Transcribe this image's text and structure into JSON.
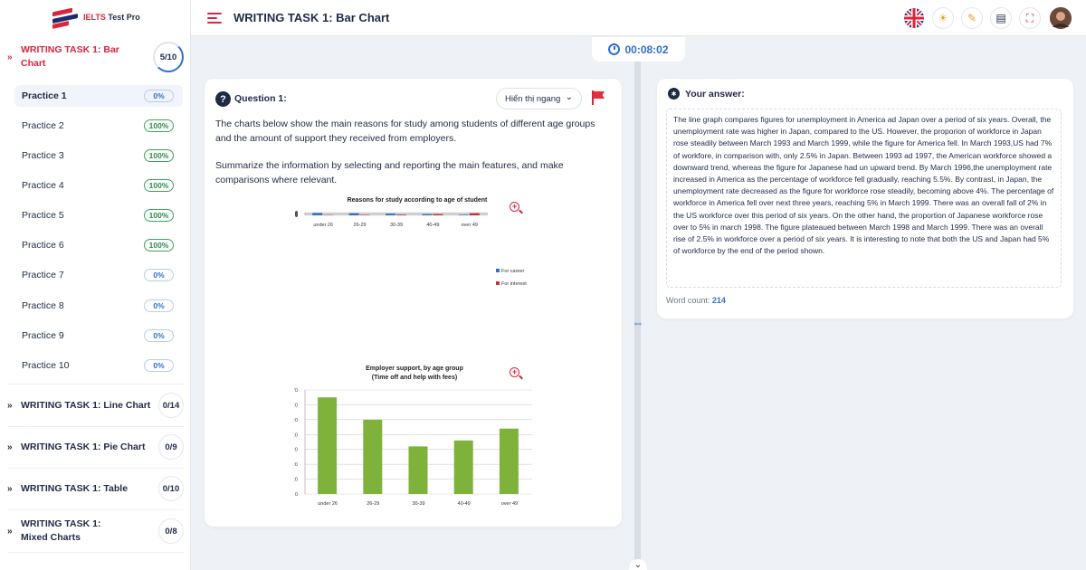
{
  "app": {
    "brand_prefix": "IELTS",
    "brand_suffix": "Test Pro"
  },
  "topbar": {
    "title": "WRITING TASK 1: Bar Chart"
  },
  "timer": {
    "value": "00:08:02"
  },
  "sidebar": {
    "groups": [
      {
        "title": "WRITING TASK 1: Bar Chart",
        "count": "5/10",
        "expanded": true
      },
      {
        "title": "WRITING TASK 1: Line Chart",
        "count": "0/14"
      },
      {
        "title": "WRITING TASK 1: Pie Chart",
        "count": "0/9"
      },
      {
        "title": "WRITING TASK 1: Table",
        "count": "0/10"
      },
      {
        "title": "WRITING TASK 1: Mixed Charts",
        "count": "0/8"
      }
    ],
    "practices": [
      {
        "label": "Practice 1",
        "progress": "0%"
      },
      {
        "label": "Practice 2",
        "progress": "100%"
      },
      {
        "label": "Practice 3",
        "progress": "100%"
      },
      {
        "label": "Practice 4",
        "progress": "100%"
      },
      {
        "label": "Practice 5",
        "progress": "100%"
      },
      {
        "label": "Practice 6",
        "progress": "100%"
      },
      {
        "label": "Practice 7",
        "progress": "0%"
      },
      {
        "label": "Practice 8",
        "progress": "0%"
      },
      {
        "label": "Practice 9",
        "progress": "0%"
      },
      {
        "label": "Practice 10",
        "progress": "0%"
      }
    ]
  },
  "question": {
    "label": "Question 1:",
    "display_option": "Hiển thị ngang",
    "text1": "The charts below show the main reasons for study among students of different age groups and the amount of support they received from employers.",
    "text2": "Summarize the information by selecting and reporting the main features, and make comparisons where relevant."
  },
  "chart_data": [
    {
      "type": "bar",
      "title": "Reasons for study according to age of student",
      "categories": [
        "under 26",
        "26-29",
        "30-39",
        "40-49",
        "over 49"
      ],
      "series": [
        {
          "name": "For career",
          "color": "#3a6fc4",
          "values": [
            80,
            70,
            57,
            41,
            19
          ]
        },
        {
          "name": "For interest",
          "color": "#c0343b",
          "values": [
            10,
            15,
            25,
            41,
            70
          ]
        }
      ],
      "ylim": [
        0,
        90
      ],
      "ytick_labels": [
        "0",
        "0",
        "0",
        "0",
        "0",
        "0",
        "0",
        "0",
        "0",
        "0"
      ],
      "legend": "right"
    },
    {
      "type": "bar",
      "title": "Employer support, by age group",
      "subtitle": "(Time off and help with fees)",
      "categories": [
        "under 26",
        "26-29",
        "30-39",
        "40-49",
        "over 49"
      ],
      "series": [
        {
          "name": "Employer support",
          "color": "#7fb23a",
          "values": [
            65,
            50,
            32,
            36,
            44
          ]
        }
      ],
      "ylim": [
        0,
        70
      ],
      "ytick_labels": [
        "0",
        "10",
        "20",
        "30",
        "40",
        "50",
        "60",
        "70"
      ],
      "ytick_labels_display": [
        "0",
        ":0",
        ":0",
        ":0",
        ":0",
        ":0",
        ":0",
        "'0"
      ]
    }
  ],
  "answer": {
    "label": "Your answer:",
    "text": "The line graph compares figures for unemployment in America ad Japan over a period of six years. Overall, the unemployment rate was higher in Japan, compared to the US. However, the proporion of workforce in Japan rose steadily between March 1993 and March 1999, while the figure for America fell. In March 1993,US had 7% of workfore, in comparison with, only 2.5% in Japan. Between 1993 ad 1997, the American workforce showed a downward trend, whereas the figure for Japanese had un upward trend. By March 1996,the unemployment rate increased in America as the percentage of workforce fell gradually, reaching 5.5%. By contrast, in Japan, the unemployment rate decreased as the figure for workforce rose steadily, becoming above 4%. The percentage of workforce in America fell over next three years, reaching 5% in March 1999. There was an overall fall of 2% in the US workforce over this period of six years. On the other hand, the proportion of Japanese workforce rose over to 5% in march 1998. The figure plateaued between March 1998 and March 1999. There was an overall rise of 2.5% in workforce over a period of six years. It is interesting to note that both the US and Japan had 5% of workforce by the end of the period shown.",
    "word_count_label": "Word count:",
    "word_count": "214"
  },
  "colors": {
    "accent": "#d7263d",
    "primary": "#2f6fd0",
    "dark": "#1f2a44"
  }
}
